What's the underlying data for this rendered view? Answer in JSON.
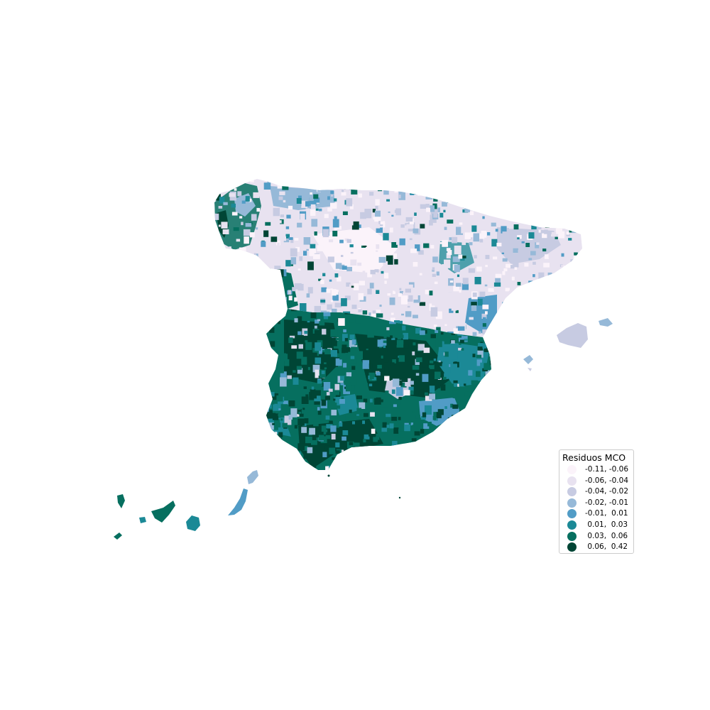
{
  "legend": {
    "title": "Residuos MCO",
    "classes": [
      {
        "label": "-0.11, -0.06",
        "color": "#fbf3fa"
      },
      {
        "label": "-0.06, -0.04",
        "color": "#e8e2f0"
      },
      {
        "label": "-0.04, -0.02",
        "color": "#c7cbe2"
      },
      {
        "label": "-0.02, -0.01",
        "color": "#96b9d8"
      },
      {
        "label": "-0.01,  0.01",
        "color": "#519cc6"
      },
      {
        "label": " 0.01,  0.03",
        "color": "#1b8996"
      },
      {
        "label": " 0.03,  0.06",
        "color": "#066f5f"
      },
      {
        "label": " 0.06,  0.42",
        "color": "#004535"
      }
    ]
  }
}
